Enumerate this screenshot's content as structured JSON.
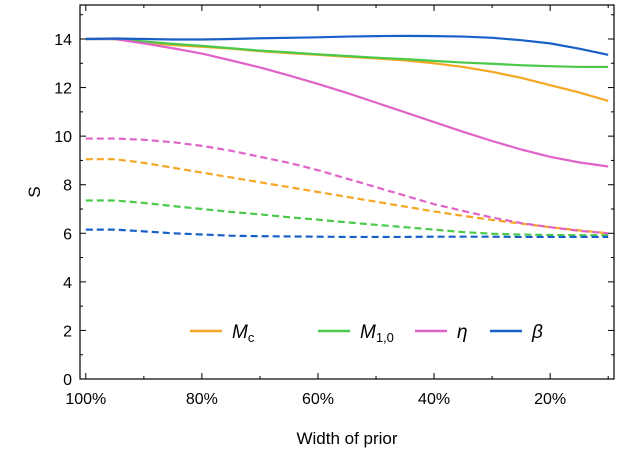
{
  "chart_data": {
    "type": "line",
    "xlabel": "Width of prior",
    "ylabel": "S",
    "x_ticks": [
      "100%",
      "80%",
      "60%",
      "40%",
      "20%"
    ],
    "x_tick_values": [
      100,
      80,
      60,
      40,
      20
    ],
    "xlim": [
      101,
      9
    ],
    "ylim": [
      0,
      15.4
    ],
    "y_ticks": [
      0,
      2,
      4,
      6,
      8,
      10,
      12,
      14
    ],
    "x": [
      100,
      95,
      90,
      85,
      80,
      75,
      70,
      65,
      60,
      55,
      50,
      45,
      40,
      35,
      30,
      25,
      20,
      15,
      10
    ],
    "legend_position": "bottom-center",
    "series": [
      {
        "key": "Mc",
        "label_main": "M",
        "label_sub": "c",
        "color": "#f5a623",
        "style": "solid",
        "values": [
          14.0,
          14.0,
          13.85,
          13.75,
          13.68,
          13.6,
          13.5,
          13.42,
          13.35,
          13.27,
          13.2,
          13.12,
          13.0,
          12.85,
          12.65,
          12.4,
          12.1,
          11.8,
          11.45
        ]
      },
      {
        "key": "M10",
        "label_main": "M",
        "label_sub": "1,0",
        "color": "#4ac94a",
        "style": "solid",
        "values": [
          14.0,
          14.0,
          13.9,
          13.8,
          13.72,
          13.62,
          13.52,
          13.45,
          13.37,
          13.3,
          13.23,
          13.17,
          13.1,
          13.03,
          12.98,
          12.92,
          12.88,
          12.85,
          12.85
        ]
      },
      {
        "key": "eta",
        "label_main": "η",
        "label_sub": "",
        "color": "#e064c8",
        "style": "solid",
        "values": [
          14.0,
          14.0,
          13.82,
          13.62,
          13.4,
          13.12,
          12.83,
          12.5,
          12.15,
          11.78,
          11.38,
          10.98,
          10.58,
          10.18,
          9.8,
          9.45,
          9.15,
          8.92,
          8.75
        ]
      },
      {
        "key": "beta",
        "label_main": "β",
        "label_sub": "",
        "color": "#1860c8",
        "style": "solid",
        "values": [
          14.0,
          14.02,
          14.0,
          13.98,
          13.98,
          14.0,
          14.03,
          14.05,
          14.07,
          14.1,
          14.12,
          14.13,
          14.12,
          14.1,
          14.05,
          13.95,
          13.82,
          13.6,
          13.35
        ]
      },
      {
        "key": "Mc_dash",
        "color": "#f5a623",
        "style": "dashed",
        "values": [
          9.05,
          9.05,
          8.9,
          8.7,
          8.5,
          8.3,
          8.1,
          7.9,
          7.7,
          7.5,
          7.3,
          7.1,
          6.9,
          6.72,
          6.55,
          6.4,
          6.25,
          6.12,
          6.0
        ]
      },
      {
        "key": "M10_dash",
        "color": "#4ac94a",
        "style": "dashed",
        "values": [
          7.35,
          7.35,
          7.25,
          7.12,
          7.0,
          6.88,
          6.78,
          6.66,
          6.56,
          6.45,
          6.35,
          6.25,
          6.15,
          6.05,
          5.98,
          5.95,
          5.93,
          5.92,
          5.92
        ]
      },
      {
        "key": "eta_dash",
        "color": "#e064c8",
        "style": "dashed",
        "values": [
          9.9,
          9.9,
          9.85,
          9.75,
          9.6,
          9.4,
          9.15,
          8.9,
          8.6,
          8.25,
          7.9,
          7.55,
          7.2,
          6.92,
          6.65,
          6.42,
          6.25,
          6.1,
          6.0
        ]
      },
      {
        "key": "beta_dash",
        "color": "#1860c8",
        "style": "dashed",
        "values": [
          6.15,
          6.15,
          6.08,
          6.0,
          5.95,
          5.9,
          5.88,
          5.87,
          5.86,
          5.85,
          5.85,
          5.85,
          5.86,
          5.86,
          5.86,
          5.85,
          5.85,
          5.85,
          5.85
        ]
      }
    ]
  }
}
